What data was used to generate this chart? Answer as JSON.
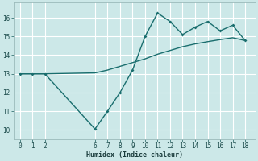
{
  "xlabel": "Humidex (Indice chaleur)",
  "bg_color": "#cce8e8",
  "grid_color": "#ffffff",
  "line_color": "#1a6e6e",
  "x_ticks": [
    0,
    1,
    2,
    6,
    7,
    8,
    9,
    10,
    11,
    12,
    13,
    14,
    15,
    16,
    17,
    18
  ],
  "ylim": [
    9.5,
    16.8
  ],
  "xlim": [
    -0.5,
    18.8
  ],
  "yticks": [
    10,
    11,
    12,
    13,
    14,
    15,
    16
  ],
  "line1_x": [
    0,
    1,
    2,
    6,
    7,
    8,
    9,
    10,
    11,
    12,
    13,
    14,
    15,
    16,
    17,
    18
  ],
  "line1_y": [
    13.0,
    13.0,
    13.0,
    13.05,
    13.2,
    13.4,
    13.6,
    13.8,
    14.05,
    14.25,
    14.45,
    14.6,
    14.72,
    14.83,
    14.93,
    14.78
  ],
  "line2_x": [
    0,
    1,
    2,
    6,
    7,
    8,
    9,
    10,
    11,
    12,
    13,
    14,
    15,
    16,
    17,
    18
  ],
  "line2_y": [
    13.0,
    13.0,
    13.0,
    10.05,
    11.0,
    12.0,
    13.2,
    15.0,
    16.25,
    15.8,
    15.1,
    15.5,
    15.8,
    15.3,
    15.6,
    14.78
  ]
}
